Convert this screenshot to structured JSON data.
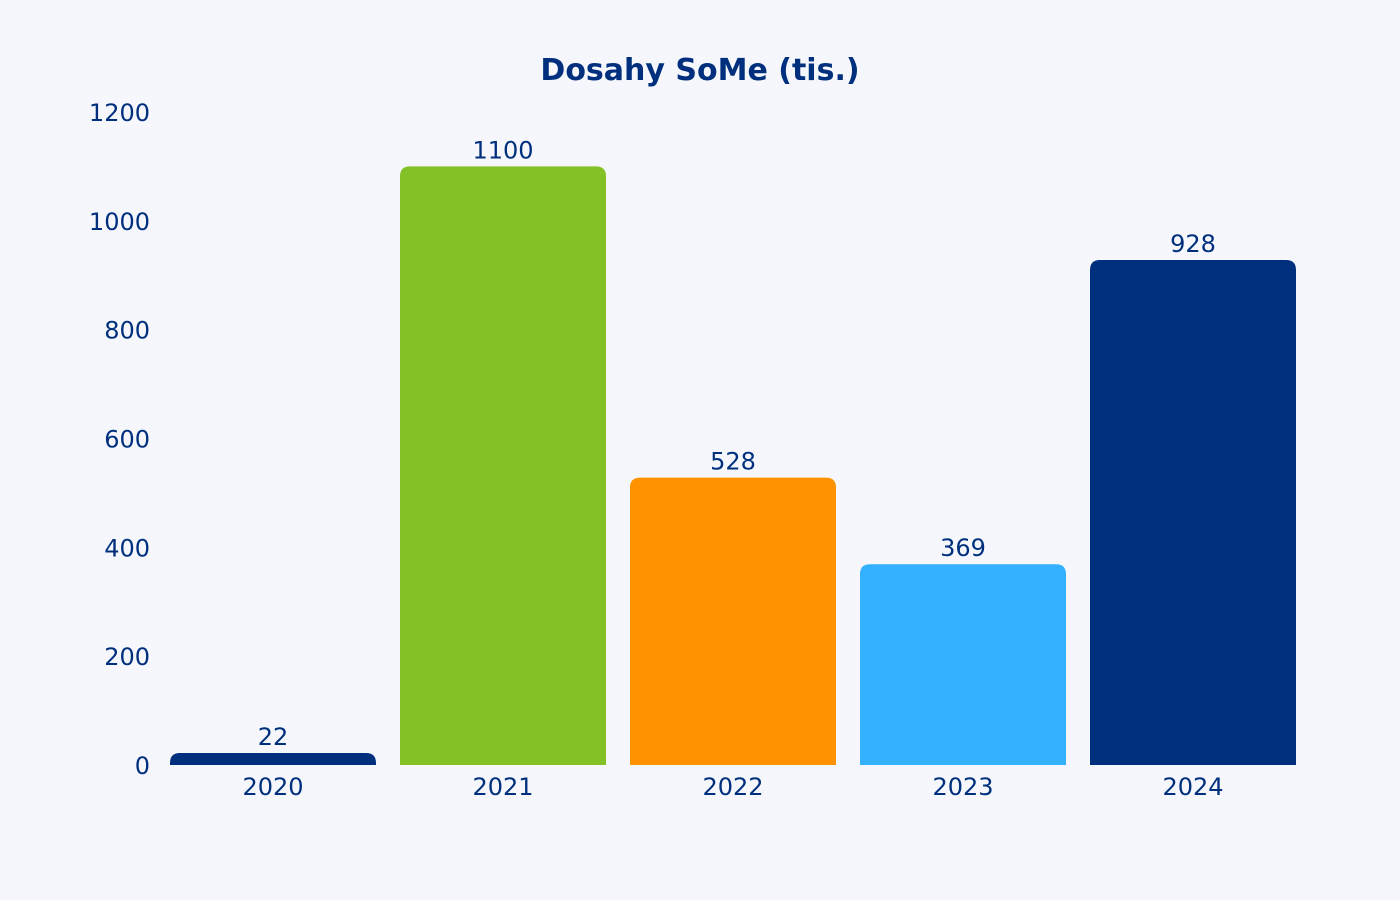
{
  "chart_data": {
    "type": "bar",
    "title": "Dosahy SoMe (tis.)",
    "xlabel": "",
    "ylabel": "",
    "categories": [
      "2020",
      "2021",
      "2022",
      "2023",
      "2024"
    ],
    "values": [
      22,
      1100,
      528,
      369,
      928
    ],
    "data_labels": [
      "22",
      "1100",
      "528",
      "369",
      "928"
    ],
    "bar_colors": [
      "#00307d",
      "#83c127",
      "#ff9200",
      "#33b1ff",
      "#00307d"
    ],
    "ylim": [
      0,
      1200
    ],
    "yticks": [
      0,
      200,
      400,
      600,
      800,
      1000,
      1200
    ],
    "grid": false,
    "legend": "none"
  },
  "colors": {
    "text": "#00307d",
    "background": "#f5f7fc"
  }
}
